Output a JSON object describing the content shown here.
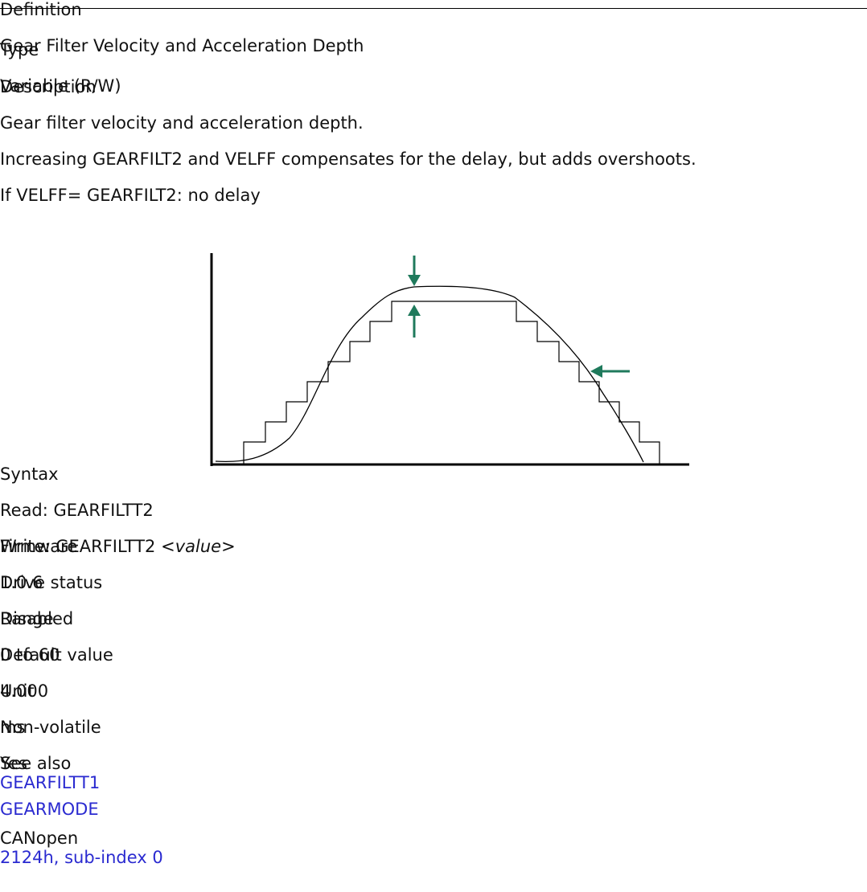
{
  "table": {
    "rows": [
      {
        "label": "Definition",
        "lines": [
          "Gear Filter Velocity and Acceleration Depth"
        ]
      },
      {
        "label": "Type",
        "lines": [
          "Variable (R/W)"
        ]
      },
      {
        "label": "Description",
        "lines": [
          "Gear filter velocity and acceleration depth.",
          "Increasing GEARFILT2 and VELFF compensates for the delay, but adds overshoots.",
          "If VELFF= GEARFILT2:  no delay"
        ]
      },
      {
        "label": "Syntax",
        "lines": [
          "Read: GEARFILTT2",
          {
            "text": "Write: GEARFILTT2 <",
            "emphasis": "value",
            "after": ">"
          }
        ]
      },
      {
        "label": "Firmware",
        "lines": [
          "1.0.6"
        ]
      },
      {
        "label": "Drive status",
        "lines": [
          "Disabled"
        ]
      },
      {
        "label": "Range",
        "lines": [
          "0 to 60"
        ]
      },
      {
        "label": "Default value",
        "lines": [
          "4.000"
        ]
      },
      {
        "label": "Unit",
        "lines": [
          "ms"
        ]
      },
      {
        "label": "Non-volatile",
        "lines": [
          "Yes"
        ]
      },
      {
        "label": "See also",
        "links": [
          "GEARFILTT1",
          "GEARMODE"
        ]
      },
      {
        "label": "CANopen",
        "links": [
          "2124h, sub-index 0"
        ]
      }
    ]
  }
}
